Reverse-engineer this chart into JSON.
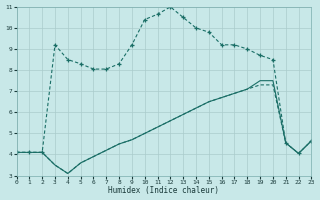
{
  "xlabel": "Humidex (Indice chaleur)",
  "bg_color": "#c8e8e8",
  "grid_color": "#aacccc",
  "line_color": "#1a6e66",
  "xlim": [
    0,
    23
  ],
  "ylim": [
    3,
    11
  ],
  "xtick_vals": [
    0,
    1,
    2,
    3,
    4,
    5,
    6,
    7,
    8,
    9,
    10,
    11,
    12,
    13,
    14,
    15,
    16,
    17,
    18,
    19,
    20,
    21,
    22,
    23
  ],
  "ytick_vals": [
    3,
    4,
    5,
    6,
    7,
    8,
    9,
    10,
    11
  ],
  "line_top_x": [
    0,
    1,
    2,
    3,
    4,
    5,
    6,
    7,
    8,
    9,
    10,
    11,
    12,
    13,
    14,
    15,
    16,
    17,
    18,
    19,
    20,
    21,
    22,
    23
  ],
  "line_top_y": [
    4.1,
    4.1,
    4.1,
    9.2,
    8.5,
    8.3,
    8.05,
    8.05,
    8.3,
    9.2,
    10.4,
    10.65,
    11.0,
    10.5,
    10.0,
    9.8,
    9.2,
    9.2,
    9.0,
    8.7,
    8.5,
    4.55,
    4.05,
    4.65
  ],
  "line_mid_x": [
    0,
    1,
    2,
    3,
    4,
    5,
    6,
    7,
    8,
    9,
    10,
    11,
    12,
    13,
    14,
    15,
    16,
    17,
    18,
    19,
    20,
    21,
    22,
    23
  ],
  "line_mid_y": [
    4.1,
    4.1,
    4.1,
    3.5,
    3.1,
    3.6,
    3.9,
    4.2,
    4.5,
    4.7,
    5.0,
    5.3,
    5.6,
    5.9,
    6.2,
    6.5,
    6.7,
    6.9,
    7.1,
    7.5,
    7.5,
    4.55,
    4.05,
    4.65
  ],
  "line_bot_x": [
    0,
    1,
    2,
    3,
    4,
    5,
    6,
    7,
    8,
    9,
    10,
    11,
    12,
    13,
    14,
    15,
    16,
    17,
    18,
    19,
    20,
    21,
    22,
    23
  ],
  "line_bot_y": [
    4.1,
    4.1,
    4.1,
    3.5,
    3.1,
    3.6,
    3.9,
    4.2,
    4.5,
    4.7,
    5.0,
    5.3,
    5.6,
    5.9,
    6.2,
    6.5,
    6.7,
    6.9,
    7.1,
    7.3,
    7.3,
    4.55,
    4.05,
    4.65
  ]
}
